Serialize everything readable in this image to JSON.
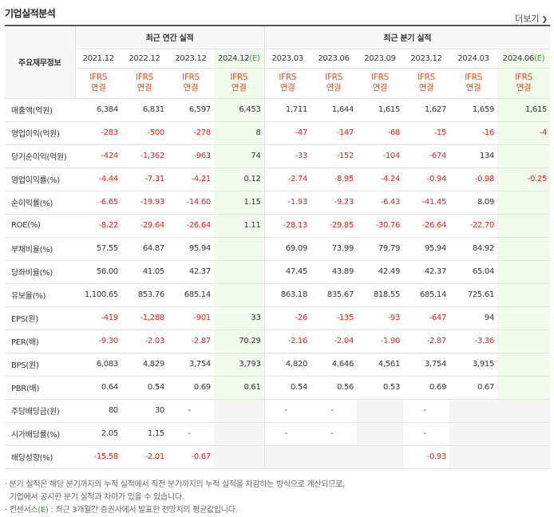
{
  "page": {
    "title": "기업실적분석",
    "more_label": "더보기"
  },
  "table": {
    "row_header": "주요재무정보",
    "group_annual": "최근 연간 실적",
    "group_quarter": "최근 분기 실적",
    "periods": [
      {
        "label": "2021.12",
        "est": false
      },
      {
        "label": "2022.12",
        "est": false
      },
      {
        "label": "2023.12",
        "est": false
      },
      {
        "label": "2024.12",
        "est": true
      },
      {
        "label": "2023.03",
        "est": false
      },
      {
        "label": "2023.06",
        "est": false
      },
      {
        "label": "2023.09",
        "est": false
      },
      {
        "label": "2023.12",
        "est": false
      },
      {
        "label": "2024.03",
        "est": false
      },
      {
        "label": "2024.06",
        "est": true
      }
    ],
    "est_suffix": "(E)",
    "basis_line1": "IFRS",
    "basis_line2": "연결",
    "rows": [
      {
        "label": "매출액(억원)",
        "values": [
          "6,384",
          "6,831",
          "6,597",
          "6,453",
          "1,711",
          "1,644",
          "1,615",
          "1,627",
          "1,659",
          "1,615"
        ]
      },
      {
        "label": "영업이익(억원)",
        "values": [
          "-283",
          "-500",
          "-278",
          "8",
          "-47",
          "-147",
          "-68",
          "-15",
          "-16",
          "-4"
        ]
      },
      {
        "label": "당기순이익(억원)",
        "values": [
          "-424",
          "-1,362",
          "-963",
          "74",
          "-33",
          "-152",
          "-104",
          "-674",
          "134",
          ""
        ]
      },
      {
        "label": "영업이익률(%)",
        "values": [
          "-4.44",
          "-7.31",
          "-4.21",
          "0.12",
          "-2.74",
          "-8.95",
          "-4.24",
          "-0.94",
          "-0.98",
          "-0.25"
        ]
      },
      {
        "label": "순이익률(%)",
        "values": [
          "-6.65",
          "-19.93",
          "-14.60",
          "1.15",
          "-1.93",
          "-9.23",
          "-6.43",
          "-41.45",
          "8.09",
          ""
        ]
      },
      {
        "label": "ROE(%)",
        "values": [
          "-8.22",
          "-29.64",
          "-26.64",
          "1.11",
          "-28.13",
          "-29.85",
          "-30.76",
          "-26.64",
          "-22.70",
          ""
        ]
      },
      {
        "label": "부채비율(%)",
        "values": [
          "57.55",
          "64.87",
          "95.94",
          "",
          "69.09",
          "73.99",
          "79.79",
          "95.94",
          "84.92",
          ""
        ]
      },
      {
        "label": "당좌비율(%)",
        "values": [
          "56.00",
          "41.05",
          "42.37",
          "",
          "47.45",
          "43.89",
          "42.49",
          "42.37",
          "65.04",
          ""
        ]
      },
      {
        "label": "유보율(%)",
        "values": [
          "1,100.65",
          "853.76",
          "685.14",
          "",
          "863.18",
          "835.67",
          "818.55",
          "685.14",
          "725.61",
          ""
        ]
      },
      {
        "label": "EPS(원)",
        "values": [
          "-419",
          "-1,288",
          "-901",
          "33",
          "-26",
          "-135",
          "-93",
          "-647",
          "94",
          ""
        ]
      },
      {
        "label": "PER(배)",
        "values": [
          "-9.30",
          "-2.03",
          "-2.87",
          "70.29",
          "-2.16",
          "-2.04",
          "-1.90",
          "-2.87",
          "-3.36",
          ""
        ]
      },
      {
        "label": "BPS(원)",
        "values": [
          "6,083",
          "4,829",
          "3,754",
          "3,793",
          "4,820",
          "4,646",
          "4,561",
          "3,754",
          "3,915",
          ""
        ]
      },
      {
        "label": "PBR(배)",
        "values": [
          "0.64",
          "0.54",
          "0.69",
          "0.61",
          "0.54",
          "0.56",
          "0.53",
          "0.69",
          "0.67",
          ""
        ]
      },
      {
        "label": "주당배당금(원)",
        "values": [
          "80",
          "30",
          "-",
          "",
          "-",
          "-",
          "",
          "-",
          "",
          ""
        ]
      },
      {
        "label": "시가배당률(%)",
        "values": [
          "2.05",
          "1.15",
          "-",
          "",
          "-",
          "-",
          "",
          "-",
          "",
          ""
        ]
      },
      {
        "label": "배당성향(%)",
        "values": [
          "-15.58",
          "-2.01",
          "-0.67",
          "",
          "",
          "",
          "",
          "-0.93",
          "",
          ""
        ]
      }
    ],
    "grey_cells": {
      "13": [
        3,
        6,
        8,
        9
      ],
      "14": [
        3,
        6,
        8,
        9
      ],
      "15": [
        3,
        4,
        5,
        6,
        8,
        9
      ]
    }
  },
  "notes": {
    "line1": "분기 실적은 해당 분기까지의 누적 실적에서 직전 분기까지의 누적 실적을 차감하는 방식으로 계산되므로,",
    "line2": "기업에서 공시한 분기 실적과 차이가 있을 수 있습니다.",
    "line3_prefix": "컨센서스",
    "line3_mark": "(E)",
    "line3_rest": ": 최근 3개월간 증권사에서 발표한 전망치의 평균값입니다."
  }
}
